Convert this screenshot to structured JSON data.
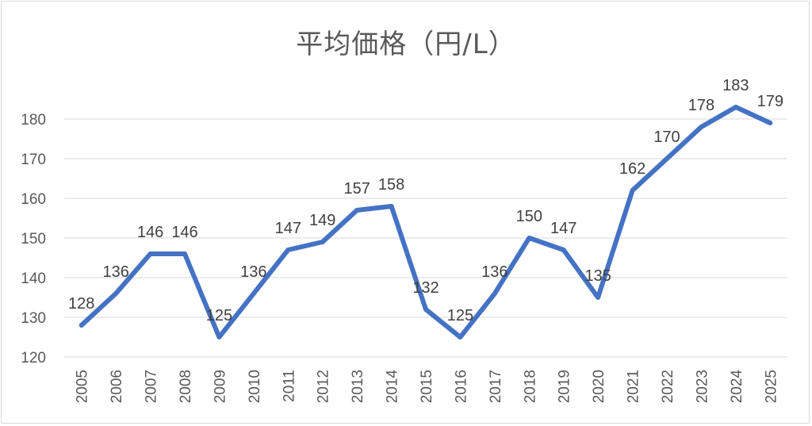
{
  "chart_data": {
    "type": "line",
    "title": "平均価格（円/L）",
    "xlabel": "",
    "ylabel": "",
    "categories": [
      "2005",
      "2006",
      "2007",
      "2008",
      "2009",
      "2010",
      "2011",
      "2012",
      "2013",
      "2014",
      "2015",
      "2016",
      "2017",
      "2018",
      "2019",
      "2020",
      "2021",
      "2022",
      "2023",
      "2024",
      "2025"
    ],
    "series": [
      {
        "values": [
          128,
          136,
          146,
          146,
          125,
          136,
          147,
          149,
          157,
          158,
          132,
          125,
          136,
          150,
          147,
          135,
          162,
          170,
          178,
          183,
          179
        ]
      }
    ],
    "ylim": [
      120,
      185
    ],
    "yticks": [
      120,
      130,
      140,
      150,
      160,
      170,
      180
    ],
    "grid": true,
    "data_labels": true,
    "line_color": "#4472c4",
    "grid_color": "#d9d9d9"
  }
}
